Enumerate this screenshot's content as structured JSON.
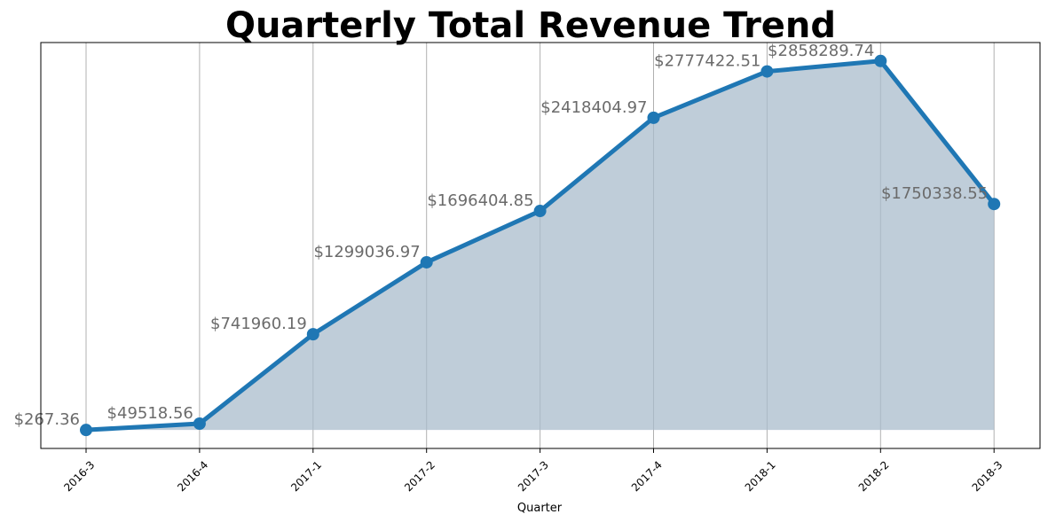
{
  "chart_data": {
    "type": "area",
    "title": "Quarterly Total Revenue Trend",
    "xlabel": "Quarter",
    "ylabel": "",
    "categories": [
      "2016-3",
      "2016-4",
      "2017-1",
      "2017-2",
      "2017-3",
      "2017-4",
      "2018-1",
      "2018-2",
      "2018-3"
    ],
    "values": [
      267.36,
      49518.56,
      741960.19,
      1299036.97,
      1696404.85,
      2418404.97,
      2777422.51,
      2858289.74,
      1750338.55
    ],
    "data_labels": [
      "$267.36",
      "$49518.56",
      "$741960.19",
      "$1299036.97",
      "$1696404.85",
      "$2418404.97",
      "$2777422.51",
      "$2858289.74",
      "$1750338.55"
    ],
    "ylim": [
      -142634.8,
      3000924.54
    ],
    "y_ticks_visible": false,
    "grid": "vertical",
    "legend": "none",
    "colors": {
      "line": "#1f77b4",
      "fill": "#a9bccc",
      "label": "#6b6b6b"
    }
  }
}
